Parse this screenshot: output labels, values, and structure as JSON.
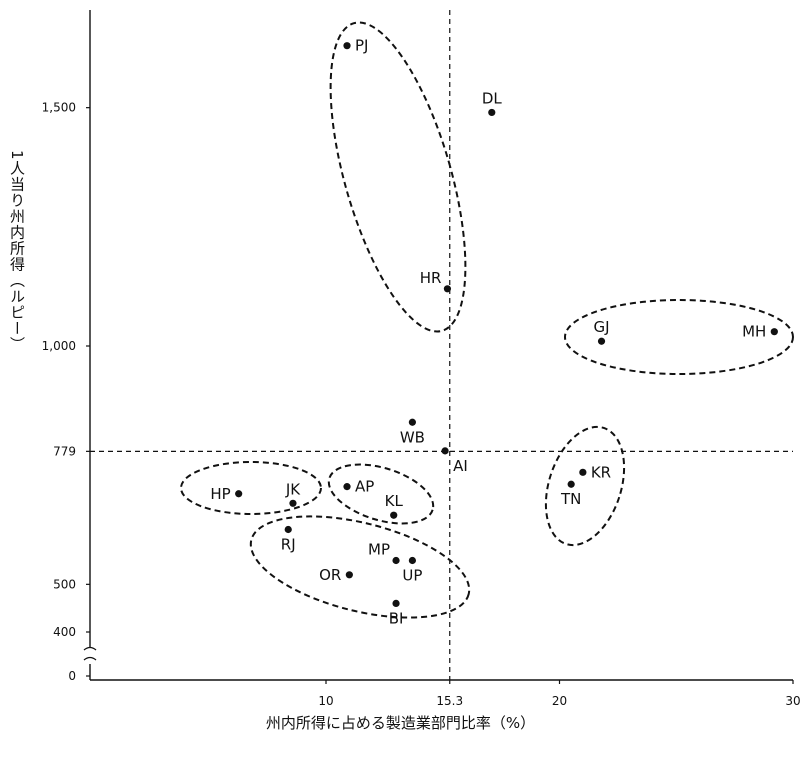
{
  "chart_data": {
    "type": "scatter",
    "xlabel": "州内所得に占める製造業部門比率（%）",
    "ylabel": "1人当り州内所得（ルピー）",
    "xlim": [
      0,
      30
    ],
    "ylim": [
      0,
      1700
    ],
    "x_ticks": [
      {
        "value": 10,
        "label": "10"
      },
      {
        "value": 15.3,
        "label": "15.3"
      },
      {
        "value": 20,
        "label": "20"
      },
      {
        "value": 30,
        "label": "30"
      }
    ],
    "y_ticks": [
      {
        "value": 0,
        "label": "0"
      },
      {
        "value": 400,
        "label": "400"
      },
      {
        "value": 500,
        "label": "500"
      },
      {
        "value": 779,
        "label": "779"
      },
      {
        "value": 1000,
        "label": "1,000"
      },
      {
        "value": 1500,
        "label": "1,500"
      }
    ],
    "reference_lines": {
      "x": 15.3,
      "y": 779
    },
    "points": [
      {
        "label": "PJ",
        "x": 10.9,
        "y": 1630,
        "label_pos": "right"
      },
      {
        "label": "DL",
        "x": 17.1,
        "y": 1490,
        "label_pos": "above"
      },
      {
        "label": "HR",
        "x": 15.2,
        "y": 1120,
        "label_pos": "left-above"
      },
      {
        "label": "GJ",
        "x": 21.8,
        "y": 1010,
        "label_pos": "above"
      },
      {
        "label": "MH",
        "x": 29.2,
        "y": 1030,
        "label_pos": "left"
      },
      {
        "label": "WB",
        "x": 13.7,
        "y": 840,
        "label_pos": "below"
      },
      {
        "label": "AI",
        "x": 15.1,
        "y": 780,
        "label_pos": "below-right"
      },
      {
        "label": "KR",
        "x": 21.0,
        "y": 735,
        "label_pos": "right"
      },
      {
        "label": "TN",
        "x": 20.5,
        "y": 710,
        "label_pos": "below"
      },
      {
        "label": "HP",
        "x": 6.3,
        "y": 690,
        "label_pos": "left"
      },
      {
        "label": "JK",
        "x": 8.6,
        "y": 670,
        "label_pos": "above"
      },
      {
        "label": "AP",
        "x": 10.9,
        "y": 705,
        "label_pos": "right"
      },
      {
        "label": "KL",
        "x": 12.9,
        "y": 645,
        "label_pos": "above"
      },
      {
        "label": "RJ",
        "x": 8.4,
        "y": 615,
        "label_pos": "below"
      },
      {
        "label": "MP",
        "x": 13.0,
        "y": 550,
        "label_pos": "left-above"
      },
      {
        "label": "UP",
        "x": 13.7,
        "y": 550,
        "label_pos": "below"
      },
      {
        "label": "OR",
        "x": 11.0,
        "y": 520,
        "label_pos": "left"
      },
      {
        "label": "BI",
        "x": 13.0,
        "y": 460,
        "label_pos": "below"
      }
    ],
    "groups": [
      {
        "members": [
          "PJ",
          "HR"
        ]
      },
      {
        "members": [
          "GJ",
          "MH"
        ]
      },
      {
        "members": [
          "KR",
          "TN"
        ]
      },
      {
        "members": [
          "HP",
          "JK",
          "RJ"
        ]
      },
      {
        "members": [
          "AP",
          "KL"
        ]
      },
      {
        "members": [
          "MP",
          "UP",
          "OR",
          "BI"
        ]
      }
    ]
  }
}
